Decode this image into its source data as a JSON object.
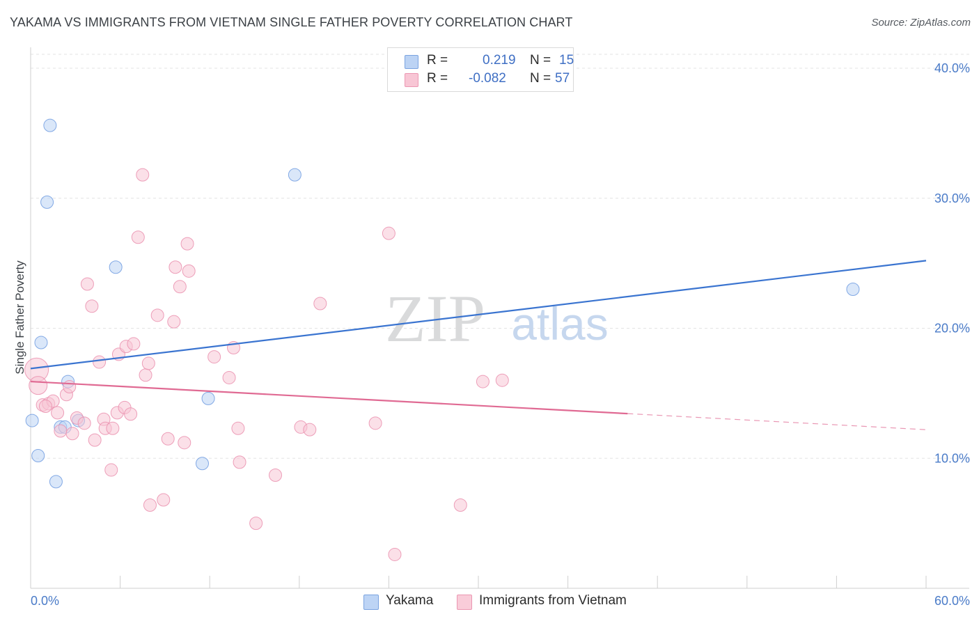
{
  "title": "YAKAMA VS IMMIGRANTS FROM VIETNAM SINGLE FATHER POVERTY CORRELATION CHART",
  "source": "Source: ZipAtlas.com",
  "watermark": {
    "zip": "ZIP",
    "atlas": "atlas"
  },
  "legend": {
    "rows": [
      {
        "r_label": "R =",
        "r_value": "0.219",
        "n_label": "N =",
        "n_value": "15",
        "color": "#a8c6f0",
        "border": "#7aa3e0"
      },
      {
        "r_label": "R =",
        "r_value": "-0.082",
        "n_label": "N =",
        "n_value": "57",
        "color": "#f7bfd0",
        "border": "#eb97b2"
      }
    ]
  },
  "bottom_legend": [
    {
      "label": "Yakama",
      "color": "#bdd4f5",
      "border": "#7aa3e0"
    },
    {
      "label": "Immigrants from Vietnam",
      "color": "#f9ccd9",
      "border": "#eb97b2"
    }
  ],
  "chart_data": {
    "type": "scatter",
    "xlabel": "",
    "ylabel": "Single Father Poverty",
    "xlim": [
      0,
      60
    ],
    "ylim": [
      0,
      40
    ],
    "x_tick_labels": [
      {
        "value": 0,
        "label": "0.0%"
      },
      {
        "value": 60,
        "label": "60.0%"
      }
    ],
    "y_tick_labels": [
      {
        "value": 10,
        "label": "10.0%"
      },
      {
        "value": 20,
        "label": "20.0%"
      },
      {
        "value": 30,
        "label": "30.0%"
      },
      {
        "value": 40,
        "label": "40.0%"
      }
    ],
    "grid": true,
    "series": [
      {
        "name": "Yakama",
        "color": "#6f9be0",
        "fill": "#bcd3f4",
        "points": [
          [
            1.3,
            35.6
          ],
          [
            1.1,
            29.7
          ],
          [
            5.7,
            24.7
          ],
          [
            17.7,
            31.8
          ],
          [
            55.1,
            23.0
          ],
          [
            0.7,
            18.9
          ],
          [
            2.5,
            15.9
          ],
          [
            11.9,
            14.6
          ],
          [
            0.1,
            12.9
          ],
          [
            2.0,
            12.4
          ],
          [
            3.2,
            12.9
          ],
          [
            0.5,
            10.2
          ],
          [
            1.7,
            8.2
          ],
          [
            11.5,
            9.6
          ],
          [
            2.3,
            12.4
          ]
        ],
        "trend": {
          "x": [
            0,
            60
          ],
          "y": [
            16.9,
            25.2
          ],
          "dash_from": null
        }
      },
      {
        "name": "Immigrants from Vietnam",
        "color": "#ea8fae",
        "fill": "#f8c6d5",
        "points": [
          [
            0.4,
            16.8
          ],
          [
            0.5,
            15.6
          ],
          [
            0.8,
            14.1
          ],
          [
            1.2,
            14.2
          ],
          [
            1.5,
            14.4
          ],
          [
            1.8,
            13.5
          ],
          [
            2.0,
            12.1
          ],
          [
            2.4,
            14.9
          ],
          [
            2.6,
            15.5
          ],
          [
            2.8,
            11.9
          ],
          [
            3.1,
            13.1
          ],
          [
            3.6,
            12.7
          ],
          [
            3.8,
            23.4
          ],
          [
            4.1,
            21.7
          ],
          [
            4.3,
            11.4
          ],
          [
            4.6,
            17.4
          ],
          [
            4.9,
            13.0
          ],
          [
            5.0,
            12.3
          ],
          [
            5.4,
            9.1
          ],
          [
            5.5,
            12.3
          ],
          [
            5.8,
            13.5
          ],
          [
            5.9,
            18.0
          ],
          [
            6.3,
            13.9
          ],
          [
            6.4,
            18.6
          ],
          [
            6.7,
            13.4
          ],
          [
            6.9,
            18.8
          ],
          [
            7.2,
            27.0
          ],
          [
            7.5,
            31.8
          ],
          [
            7.7,
            16.4
          ],
          [
            7.9,
            17.3
          ],
          [
            8.0,
            6.4
          ],
          [
            8.5,
            21.0
          ],
          [
            8.9,
            6.8
          ],
          [
            9.2,
            11.5
          ],
          [
            9.6,
            20.5
          ],
          [
            9.7,
            24.7
          ],
          [
            10.0,
            23.2
          ],
          [
            10.3,
            11.2
          ],
          [
            10.5,
            26.5
          ],
          [
            10.6,
            24.4
          ],
          [
            12.3,
            17.8
          ],
          [
            13.3,
            16.2
          ],
          [
            13.6,
            18.5
          ],
          [
            13.9,
            12.3
          ],
          [
            14.0,
            9.7
          ],
          [
            15.1,
            5.0
          ],
          [
            16.4,
            8.7
          ],
          [
            18.1,
            12.4
          ],
          [
            18.7,
            12.2
          ],
          [
            19.4,
            21.9
          ],
          [
            23.1,
            12.7
          ],
          [
            24.0,
            27.3
          ],
          [
            24.4,
            2.6
          ],
          [
            28.8,
            6.4
          ],
          [
            30.3,
            15.9
          ],
          [
            31.6,
            16.0
          ],
          [
            1.0,
            14.0
          ]
        ],
        "trend": {
          "x": [
            0,
            60
          ],
          "y": [
            15.9,
            12.2
          ],
          "dash_from": 40
        }
      }
    ]
  }
}
